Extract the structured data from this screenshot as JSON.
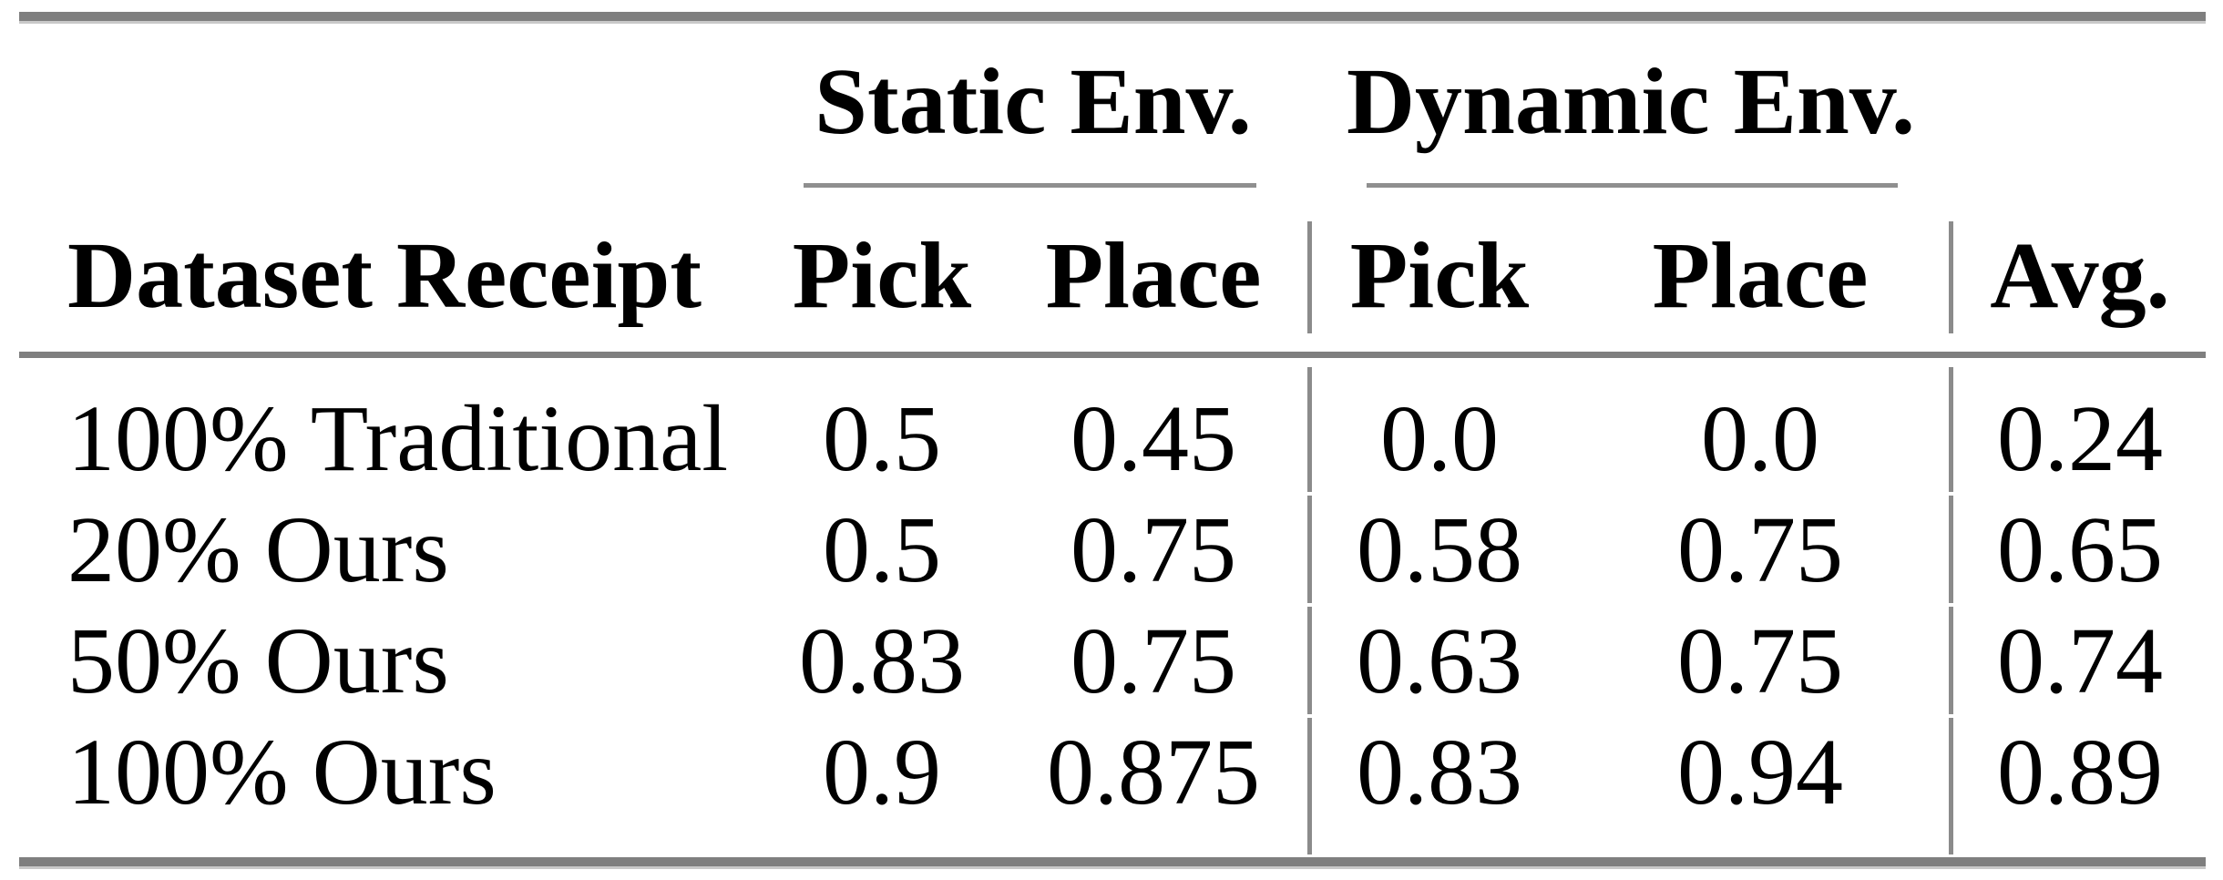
{
  "colors": {
    "rule_gray": "#7f7f7f",
    "divider_gray": "#8b8b8b",
    "text": "#000000",
    "background": "#ffffff"
  },
  "table": {
    "group_headers": [
      {
        "label": "Static Env."
      },
      {
        "label": "Dynamic Env."
      }
    ],
    "columns": {
      "row_header": "Dataset Receipt",
      "static_pick": "Pick",
      "static_place": "Place",
      "dynamic_pick": "Pick",
      "dynamic_place": "Place",
      "avg": "Avg."
    },
    "rows": [
      {
        "label": "100% Traditional",
        "static_pick": "0.5",
        "static_place": "0.45",
        "dynamic_pick": "0.0",
        "dynamic_place": "0.0",
        "avg": "0.24"
      },
      {
        "label": "20% Ours",
        "static_pick": "0.5",
        "static_place": "0.75",
        "dynamic_pick": "0.58",
        "dynamic_place": "0.75",
        "avg": "0.65"
      },
      {
        "label": "50% Ours",
        "static_pick": "0.83",
        "static_place": "0.75",
        "dynamic_pick": "0.63",
        "dynamic_place": "0.75",
        "avg": "0.74"
      },
      {
        "label": "100% Ours",
        "static_pick": "0.9",
        "static_place": "0.875",
        "dynamic_pick": "0.83",
        "dynamic_place": "0.94",
        "avg": "0.89"
      }
    ]
  },
  "chart_data": {
    "type": "table",
    "column_groups": [
      {
        "label": "Static Env.",
        "columns": [
          "Pick",
          "Place"
        ]
      },
      {
        "label": "Dynamic Env.",
        "columns": [
          "Pick",
          "Place"
        ]
      }
    ],
    "columns": [
      "Dataset Receipt",
      "Static Pick",
      "Static Place",
      "Dynamic Pick",
      "Dynamic Place",
      "Avg."
    ],
    "rows": [
      [
        "100% Traditional",
        0.5,
        0.45,
        0.0,
        0.0,
        0.24
      ],
      [
        "20% Ours",
        0.5,
        0.75,
        0.58,
        0.75,
        0.65
      ],
      [
        "50% Ours",
        0.83,
        0.75,
        0.63,
        0.75,
        0.74
      ],
      [
        "100% Ours",
        0.9,
        0.875,
        0.83,
        0.94,
        0.89
      ]
    ]
  }
}
